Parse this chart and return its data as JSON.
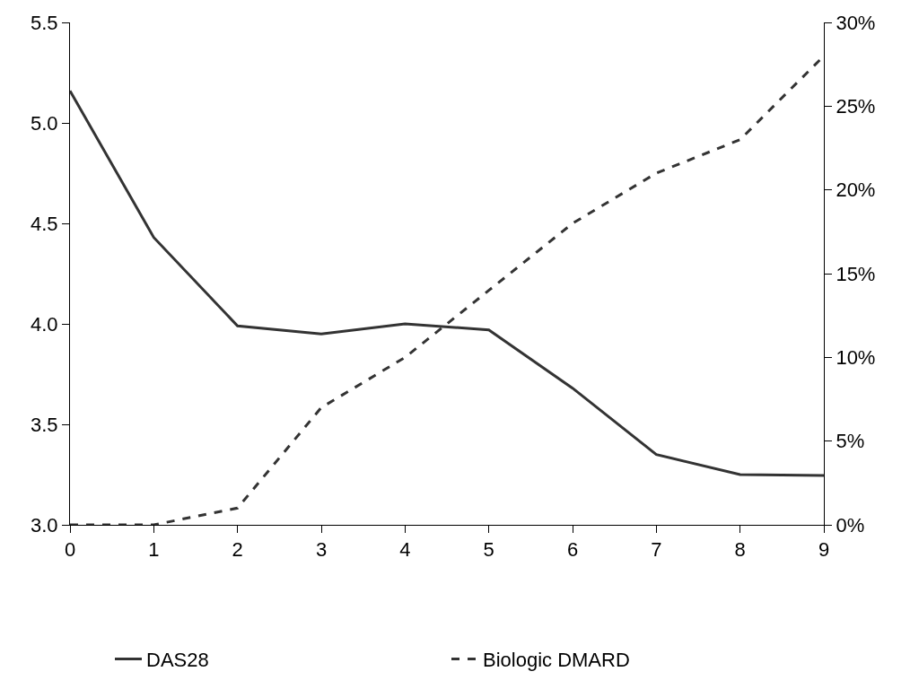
{
  "chart_data": {
    "type": "line",
    "x": [
      0,
      1,
      2,
      3,
      4,
      5,
      6,
      7,
      8,
      9
    ],
    "series": [
      {
        "name": "DAS28",
        "color": "#333333",
        "line_style": "solid",
        "values": [
          5.16,
          4.43,
          3.99,
          3.95,
          4.0,
          3.97,
          3.68,
          3.35,
          3.25,
          3.245
        ]
      },
      {
        "name": "Biologic DMARD",
        "color": "#333333",
        "line_style": "dashed",
        "axis": "y2",
        "values": [
          0,
          0,
          1,
          7,
          10,
          14,
          18,
          21,
          23,
          28
        ]
      }
    ],
    "xlim": [
      0,
      9
    ],
    "xticks": [
      0,
      1,
      2,
      3,
      4,
      5,
      6,
      7,
      8,
      9
    ],
    "ylim": [
      3.0,
      5.5
    ],
    "yticks": [
      {
        "value": 3.0,
        "label": "3.0"
      },
      {
        "value": 3.5,
        "label": "3.5"
      },
      {
        "value": 4.0,
        "label": "4.0"
      },
      {
        "value": 4.5,
        "label": "4.5"
      },
      {
        "value": 5.0,
        "label": "5.0"
      },
      {
        "value": 5.5,
        "label": "5.5"
      }
    ],
    "y2lim": [
      0,
      30
    ],
    "y2ticks": [
      {
        "value": 0,
        "label": "0%"
      },
      {
        "value": 5,
        "label": "5%"
      },
      {
        "value": 10,
        "label": "10%"
      },
      {
        "value": 15,
        "label": "15%"
      },
      {
        "value": 20,
        "label": "20%"
      },
      {
        "value": 25,
        "label": "25%"
      },
      {
        "value": 30,
        "label": "30%"
      }
    ],
    "legend": "bottom",
    "marker": "none"
  }
}
